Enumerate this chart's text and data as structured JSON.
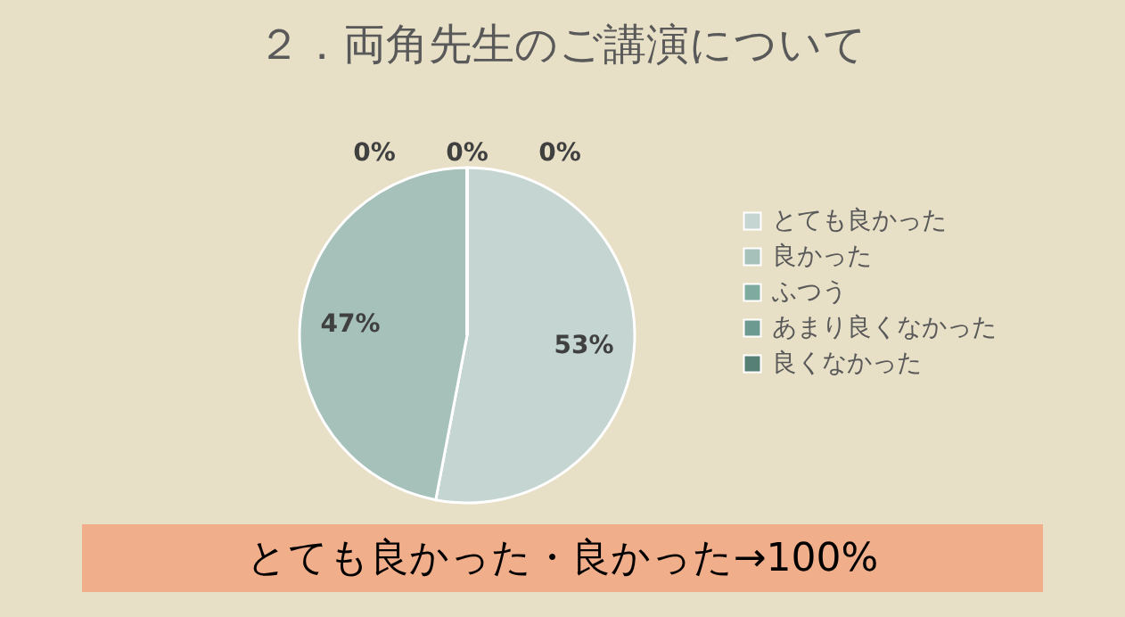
{
  "chart_data": {
    "type": "pie",
    "title": "２．両角先生のご講演について",
    "categories": [
      "とても良かった",
      "良かった",
      "ふつう",
      "あまり良くなかった",
      "良くなかった"
    ],
    "values": [
      53,
      47,
      0,
      0,
      0
    ],
    "value_labels": [
      "53%",
      "47%",
      "0%",
      "0%",
      "0%"
    ],
    "colors": [
      "#c5d5d2",
      "#a6c1ba",
      "#7faaa0",
      "#6c9a90",
      "#567f76"
    ],
    "legend": "right",
    "annotations": [
      "とても良かった・良かった→100%"
    ]
  }
}
